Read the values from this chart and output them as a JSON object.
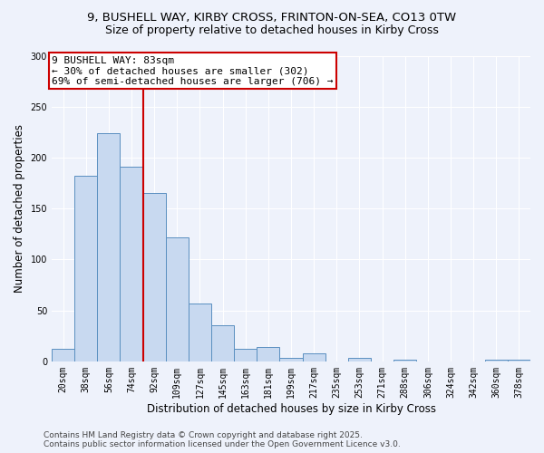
{
  "title_line1": "9, BUSHELL WAY, KIRBY CROSS, FRINTON-ON-SEA, CO13 0TW",
  "title_line2": "Size of property relative to detached houses in Kirby Cross",
  "xlabel": "Distribution of detached houses by size in Kirby Cross",
  "ylabel": "Number of detached properties",
  "categories": [
    "20sqm",
    "38sqm",
    "56sqm",
    "74sqm",
    "92sqm",
    "109sqm",
    "127sqm",
    "145sqm",
    "163sqm",
    "181sqm",
    "199sqm",
    "217sqm",
    "235sqm",
    "253sqm",
    "271sqm",
    "288sqm",
    "306sqm",
    "324sqm",
    "342sqm",
    "360sqm",
    "378sqm"
  ],
  "values": [
    12,
    182,
    224,
    191,
    165,
    122,
    57,
    35,
    12,
    14,
    3,
    8,
    0,
    3,
    0,
    2,
    0,
    0,
    0,
    2,
    2
  ],
  "bar_color": "#c8d9f0",
  "bar_edge_color": "#5a8fc0",
  "vline_color": "#cc0000",
  "annotation_text": "9 BUSHELL WAY: 83sqm\n← 30% of detached houses are smaller (302)\n69% of semi-detached houses are larger (706) →",
  "annotation_box_edge_color": "#cc0000",
  "ylim": [
    0,
    300
  ],
  "yticks": [
    0,
    50,
    100,
    150,
    200,
    250,
    300
  ],
  "footer_text": "Contains HM Land Registry data © Crown copyright and database right 2025.\nContains public sector information licensed under the Open Government Licence v3.0.",
  "background_color": "#eef2fb",
  "grid_color": "#ffffff",
  "title_fontsize": 9.5,
  "subtitle_fontsize": 9,
  "axis_label_fontsize": 8.5,
  "tick_fontsize": 7,
  "annotation_fontsize": 8,
  "footer_fontsize": 6.5
}
